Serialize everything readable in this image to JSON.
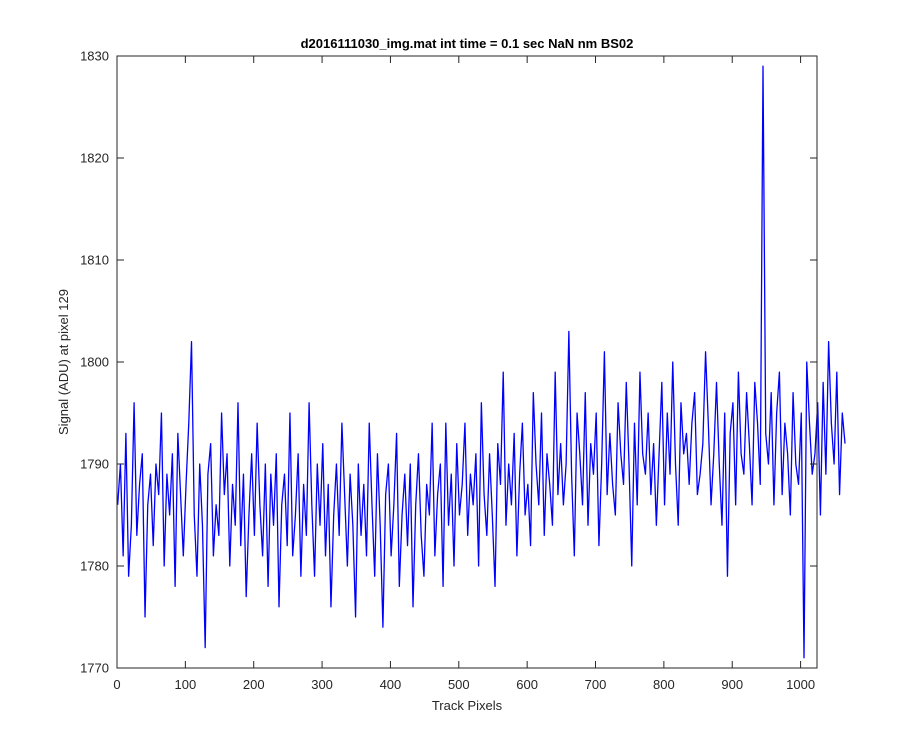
{
  "chart_data": {
    "type": "line",
    "title": "d2016111030_img.mat int time = 0.1 sec  NaN nm BS02",
    "xlabel": "Track Pixels",
    "ylabel": "Signal (ADU) at pixel 129",
    "xlim": [
      0,
      1024
    ],
    "ylim": [
      1770,
      1830
    ],
    "xticks": [
      0,
      100,
      200,
      300,
      400,
      500,
      600,
      700,
      800,
      900,
      1000
    ],
    "yticks": [
      1770,
      1780,
      1790,
      1800,
      1810,
      1820,
      1830
    ],
    "grid": false,
    "legend": "none",
    "line_color": "#0000ff",
    "series": [
      {
        "x_start": 1,
        "x_step": 4,
        "values": [
          1786,
          1790,
          1781,
          1793,
          1779,
          1784,
          1796,
          1783,
          1788,
          1791,
          1775,
          1786,
          1789,
          1782,
          1790,
          1787,
          1795,
          1780,
          1789,
          1785,
          1791,
          1778,
          1793,
          1787,
          1781,
          1788,
          1794,
          1802,
          1785,
          1779,
          1790,
          1784,
          1772,
          1789,
          1792,
          1781,
          1786,
          1783,
          1795,
          1787,
          1791,
          1780,
          1788,
          1784,
          1796,
          1782,
          1789,
          1777,
          1785,
          1791,
          1783,
          1794,
          1786,
          1781,
          1790,
          1778,
          1789,
          1784,
          1791,
          1776,
          1786,
          1789,
          1782,
          1795,
          1781,
          1785,
          1791,
          1779,
          1788,
          1783,
          1796,
          1786,
          1779,
          1790,
          1784,
          1792,
          1781,
          1788,
          1776,
          1785,
          1790,
          1783,
          1794,
          1787,
          1780,
          1789,
          1784,
          1775,
          1790,
          1783,
          1788,
          1781,
          1794,
          1786,
          1779,
          1791,
          1784,
          1774,
          1787,
          1790,
          1781,
          1786,
          1793,
          1778,
          1785,
          1789,
          1782,
          1790,
          1776,
          1786,
          1791,
          1783,
          1779,
          1788,
          1785,
          1794,
          1781,
          1787,
          1790,
          1778,
          1794,
          1784,
          1789,
          1780,
          1792,
          1785,
          1788,
          1794,
          1783,
          1789,
          1786,
          1791,
          1780,
          1796,
          1787,
          1783,
          1791,
          1785,
          1778,
          1792,
          1788,
          1799,
          1784,
          1790,
          1786,
          1793,
          1781,
          1789,
          1794,
          1785,
          1788,
          1782,
          1797,
          1790,
          1786,
          1795,
          1783,
          1791,
          1788,
          1784,
          1799,
          1787,
          1792,
          1786,
          1790,
          1803,
          1789,
          1781,
          1795,
          1791,
          1786,
          1797,
          1784,
          1792,
          1789,
          1795,
          1782,
          1790,
          1801,
          1787,
          1793,
          1788,
          1785,
          1796,
          1791,
          1788,
          1798,
          1790,
          1780,
          1794,
          1786,
          1799,
          1791,
          1789,
          1795,
          1787,
          1792,
          1784,
          1791,
          1798,
          1786,
          1795,
          1789,
          1800,
          1790,
          1784,
          1796,
          1791,
          1793,
          1788,
          1794,
          1797,
          1787,
          1789,
          1792,
          1801,
          1794,
          1786,
          1791,
          1798,
          1790,
          1784,
          1795,
          1779,
          1793,
          1796,
          1786,
          1799,
          1791,
          1789,
          1797,
          1792,
          1786,
          1798,
          1794,
          1788,
          1829,
          1793,
          1790,
          1797,
          1786,
          1795,
          1799,
          1787,
          1794,
          1791,
          1785,
          1797,
          1790,
          1788,
          1795,
          1771,
          1800,
          1794,
          1789,
          1791,
          1796,
          1785,
          1798,
          1789,
          1802,
          1794,
          1790,
          1799,
          1787,
          1795,
          1792
        ]
      }
    ]
  }
}
